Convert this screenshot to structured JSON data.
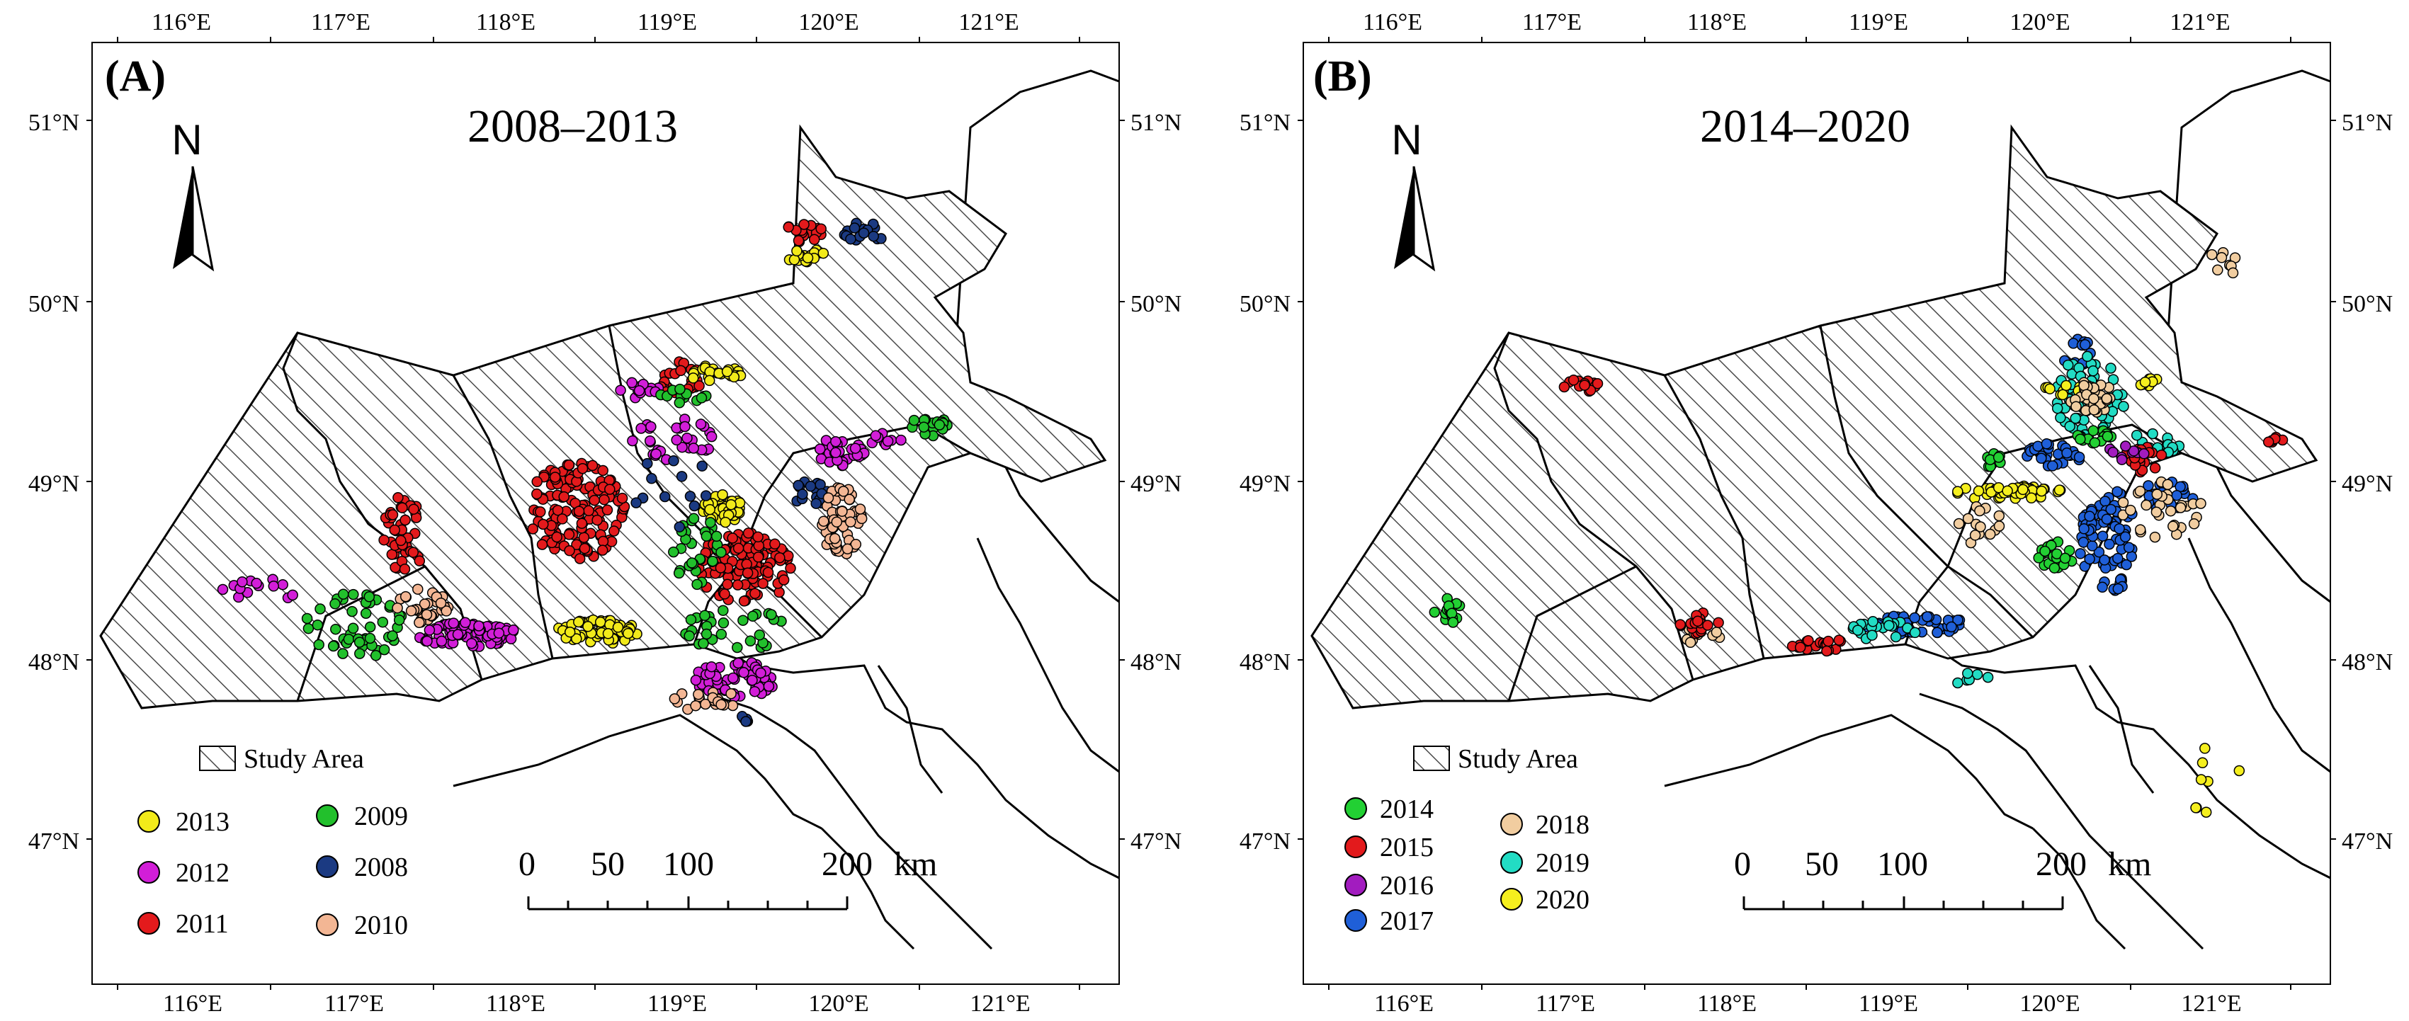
{
  "panels": [
    {
      "id": "A",
      "label": "(A)",
      "period": "2008–2013",
      "north_label": "N",
      "study_area_label": "Study Area",
      "years": [
        {
          "label": "2013",
          "color": "#f2ea1a"
        },
        {
          "label": "2012",
          "color": "#d21ed8"
        },
        {
          "label": "2011",
          "color": "#e31a1c"
        },
        {
          "label": "2009",
          "color": "#22c02c"
        },
        {
          "label": "2008",
          "color": "#1b3a82"
        },
        {
          "label": "2010",
          "color": "#f3b694"
        }
      ],
      "scale": {
        "labels": [
          "0",
          "50",
          "100",
          "200"
        ],
        "unit": "km"
      },
      "lon_ticks": [
        "116°E",
        "117°E",
        "118°E",
        "119°E",
        "120°E",
        "121°E"
      ],
      "lat_ticks": [
        "51°N",
        "50°N",
        "49°N",
        "48°N",
        "47°N"
      ]
    },
    {
      "id": "B",
      "label": "(B)",
      "period": "2014–2020",
      "north_label": "N",
      "study_area_label": "Study Area",
      "years": [
        {
          "label": "2014",
          "color": "#22d033"
        },
        {
          "label": "2015",
          "color": "#e31a1c"
        },
        {
          "label": "2016",
          "color": "#a21cbf"
        },
        {
          "label": "2017",
          "color": "#1f5fd8"
        },
        {
          "label": "2018",
          "color": "#f1cda0"
        },
        {
          "label": "2019",
          "color": "#22dcc4"
        },
        {
          "label": "2020",
          "color": "#f5ef1e"
        }
      ],
      "scale": {
        "labels": [
          "0",
          "50",
          "100",
          "200"
        ],
        "unit": "km"
      },
      "lon_ticks": [
        "116°E",
        "117°E",
        "118°E",
        "119°E",
        "120°E",
        "121°E"
      ],
      "lat_ticks": [
        "51°N",
        "50°N",
        "49°N",
        "48°N",
        "47°N"
      ]
    }
  ]
}
